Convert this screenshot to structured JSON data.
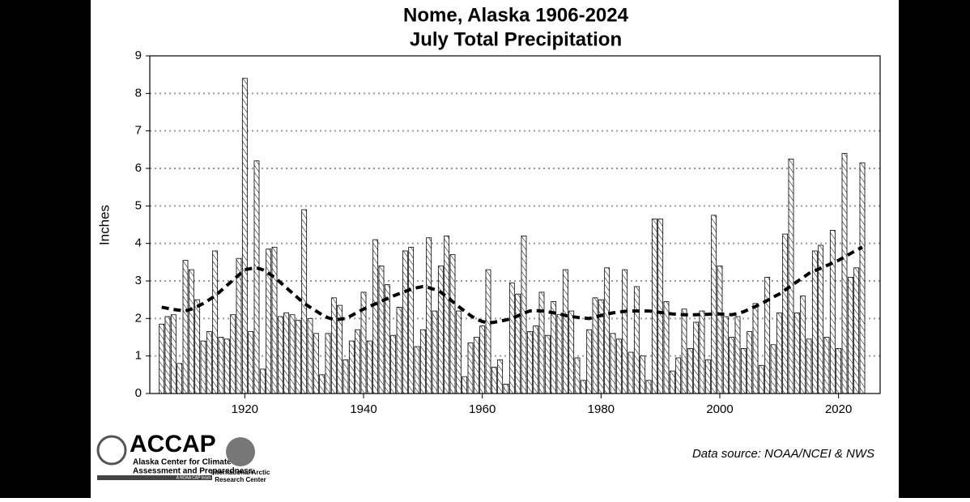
{
  "chart_data": {
    "type": "bar",
    "title": "Nome, Alaska 1906-2024",
    "subtitle": "July Total Precipitation",
    "y_label": "Inches",
    "source": "Data source: NOAA/NCEI & NWS",
    "logo_main": "ACCAP",
    "logo_line1": "Alaska Center for Climate",
    "logo_line2": "Assessment and Preparedness",
    "logo_tag": "A NOAA CAP team",
    "logo2_line1": "International Arctic",
    "logo2_line2": "Research Center",
    "x": [
      1906,
      1907,
      1908,
      1909,
      1910,
      1911,
      1912,
      1913,
      1914,
      1915,
      1916,
      1917,
      1918,
      1919,
      1920,
      1921,
      1922,
      1923,
      1924,
      1925,
      1926,
      1927,
      1928,
      1929,
      1930,
      1931,
      1932,
      1933,
      1934,
      1935,
      1936,
      1937,
      1938,
      1939,
      1940,
      1941,
      1942,
      1943,
      1944,
      1945,
      1946,
      1947,
      1948,
      1949,
      1950,
      1951,
      1952,
      1953,
      1954,
      1955,
      1956,
      1957,
      1958,
      1959,
      1960,
      1961,
      1962,
      1963,
      1964,
      1965,
      1966,
      1967,
      1968,
      1969,
      1970,
      1971,
      1972,
      1973,
      1974,
      1975,
      1976,
      1977,
      1978,
      1979,
      1980,
      1981,
      1982,
      1983,
      1984,
      1985,
      1986,
      1987,
      1988,
      1989,
      1990,
      1991,
      1992,
      1993,
      1994,
      1995,
      1996,
      1997,
      1998,
      1999,
      2000,
      2001,
      2002,
      2003,
      2004,
      2005,
      2006,
      2007,
      2008,
      2009,
      2010,
      2011,
      2012,
      2013,
      2014,
      2015,
      2016,
      2017,
      2018,
      2019,
      2020,
      2021,
      2022,
      2023,
      2024
    ],
    "series": [
      {
        "color": "#000000",
        "values": [
          1.85,
          2.05,
          2.1,
          0.8,
          3.55,
          3.3,
          2.5,
          1.4,
          1.65,
          3.8,
          1.5,
          1.45,
          2.1,
          3.6,
          8.4,
          1.65,
          6.2,
          0.65,
          3.85,
          3.9,
          2.05,
          2.15,
          2.1,
          1.95,
          4.9,
          2.0,
          1.6,
          0.5,
          1.6,
          2.55,
          2.35,
          0.9,
          1.4,
          1.7,
          2.7,
          1.4,
          4.1,
          3.4,
          2.9,
          1.55,
          2.3,
          3.8,
          3.9,
          1.25,
          1.7,
          4.15,
          2.2,
          3.4,
          4.2,
          3.7,
          2.2,
          0.45,
          1.35,
          1.5,
          1.8,
          3.3,
          0.7,
          0.9,
          0.25,
          2.95,
          2.65,
          4.2,
          1.65,
          1.8,
          2.7,
          1.55,
          2.45,
          2.1,
          3.3,
          2.2,
          0.95,
          0.35,
          1.7,
          2.55,
          2.5,
          3.35,
          1.6,
          1.45,
          3.3,
          1.1,
          2.85,
          1.0,
          0.35,
          4.65,
          4.65,
          2.45,
          0.6,
          0.95,
          2.25,
          1.2,
          1.9,
          2.2,
          0.9,
          4.75,
          3.4,
          2.05,
          1.5,
          2.05,
          1.2,
          1.65,
          2.4,
          0.75,
          3.1,
          1.3,
          2.15,
          4.25,
          6.25,
          2.15,
          2.6,
          1.45,
          3.8,
          3.95,
          1.5,
          4.35,
          1.2,
          6.4,
          3.1,
          3.35,
          6.15
        ]
      },
      {
        "type": "line",
        "color": "#000000",
        "values": [
          2.3,
          2.27,
          2.24,
          2.22,
          2.2,
          2.25,
          2.32,
          2.4,
          2.5,
          2.6,
          2.74,
          2.88,
          3.02,
          3.16,
          3.3,
          3.33,
          3.35,
          3.3,
          3.2,
          3.1,
          2.96,
          2.82,
          2.68,
          2.54,
          2.4,
          2.3,
          2.2,
          2.1,
          2.02,
          1.97,
          1.98,
          2.0,
          2.08,
          2.17,
          2.25,
          2.32,
          2.39,
          2.46,
          2.53,
          2.6,
          2.66,
          2.72,
          2.78,
          2.82,
          2.85,
          2.82,
          2.77,
          2.7,
          2.58,
          2.45,
          2.32,
          2.2,
          2.08,
          1.98,
          1.92,
          1.88,
          1.9,
          1.93,
          1.96,
          2.0,
          2.07,
          2.14,
          2.2,
          2.21,
          2.2,
          2.18,
          2.15,
          2.12,
          2.08,
          2.05,
          2.03,
          2.01,
          2.0,
          2.04,
          2.08,
          2.12,
          2.15,
          2.17,
          2.19,
          2.2,
          2.2,
          2.2,
          2.2,
          2.18,
          2.16,
          2.14,
          2.12,
          2.11,
          2.1,
          2.1,
          2.1,
          2.11,
          2.11,
          2.12,
          2.12,
          2.11,
          2.1,
          2.13,
          2.18,
          2.25,
          2.32,
          2.4,
          2.48,
          2.57,
          2.65,
          2.76,
          2.87,
          2.98,
          3.09,
          3.2,
          3.27,
          3.34,
          3.41,
          3.48,
          3.55,
          3.64,
          3.73,
          3.82,
          3.9
        ]
      }
    ],
    "xlim": [
      1904,
      2027
    ],
    "xticks": [
      1920,
      1940,
      1960,
      1980,
      2000,
      2020
    ],
    "ylim": [
      0,
      9
    ],
    "yticks": [
      0,
      1,
      2,
      3,
      4,
      5,
      6,
      7,
      8,
      9
    ],
    "grid": true
  }
}
